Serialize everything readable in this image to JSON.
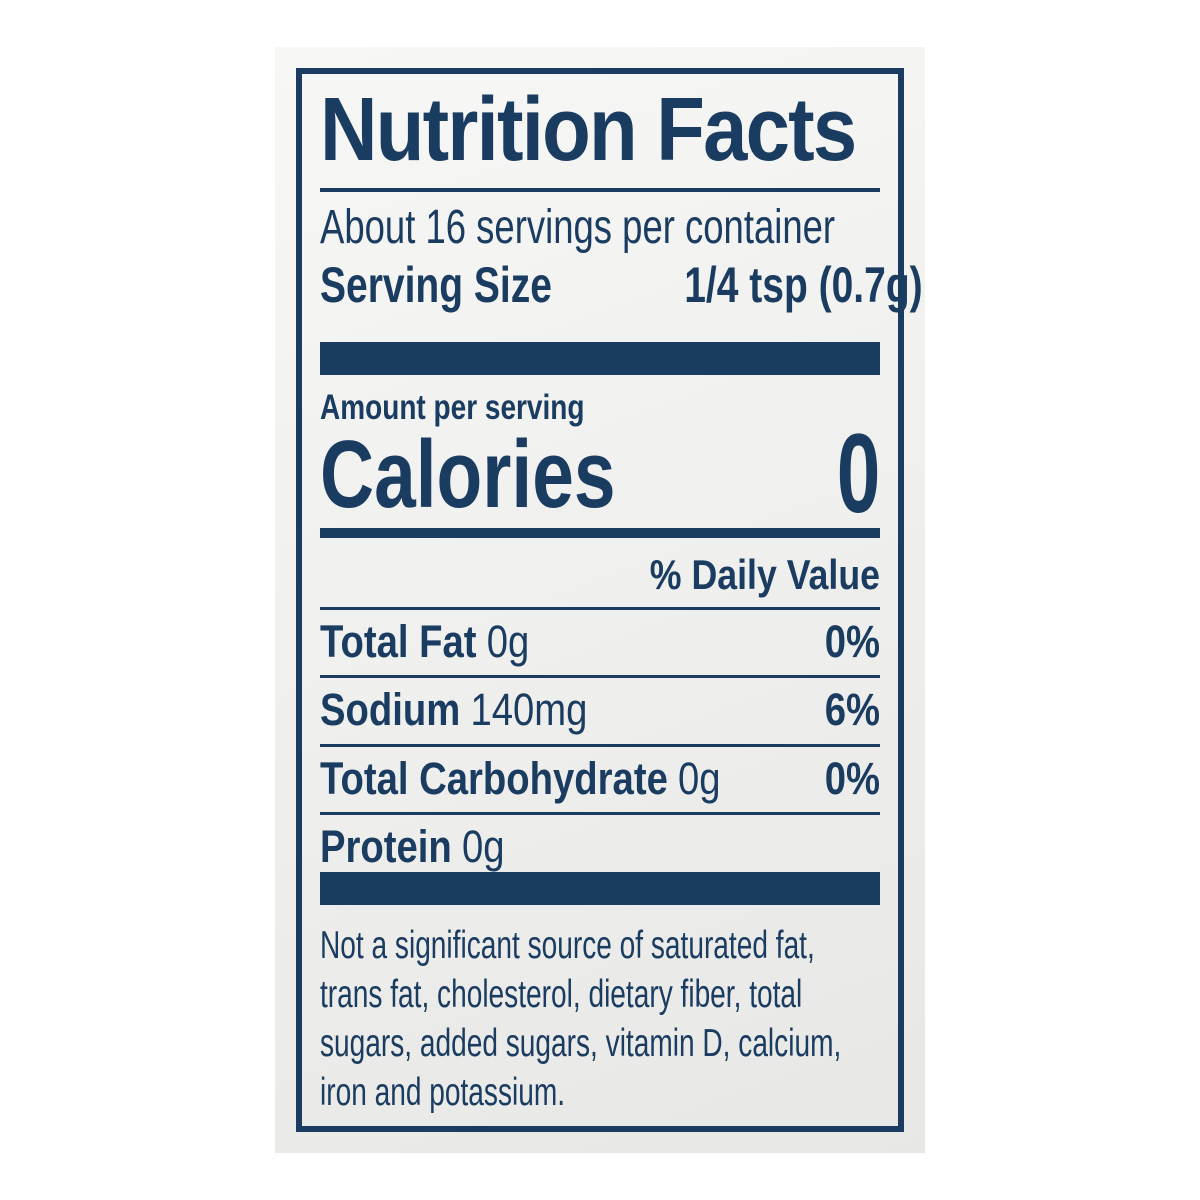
{
  "label": {
    "title": "Nutrition Facts",
    "servings_per_container": "About 16 servings per container",
    "serving_size": {
      "label": "Serving Size",
      "value": "1/4 tsp (0.7g)"
    },
    "amount_per_serving_label": "Amount per serving",
    "calories": {
      "label": "Calories",
      "value": "0"
    },
    "daily_value_header": "% Daily Value",
    "nutrients": [
      {
        "name": "Total Fat",
        "amount": "0g",
        "daily_value": "0%"
      },
      {
        "name": "Sodium",
        "amount": "140mg",
        "daily_value": "6%"
      },
      {
        "name": "Total Carbohydrate",
        "amount": "0g",
        "daily_value": "0%"
      },
      {
        "name": "Protein",
        "amount": "0g",
        "daily_value": ""
      }
    ],
    "footnote_lines": [
      "Not a significant source of saturated fat,",
      "trans fat, cholesterol, dietary fiber, total",
      "sugars, added sugars, vitamin D, calcium,",
      "iron and potassium."
    ],
    "colors": {
      "navy": "#1b3c61",
      "paper": "#f1f1ef",
      "page_background": "#ffffff"
    }
  }
}
